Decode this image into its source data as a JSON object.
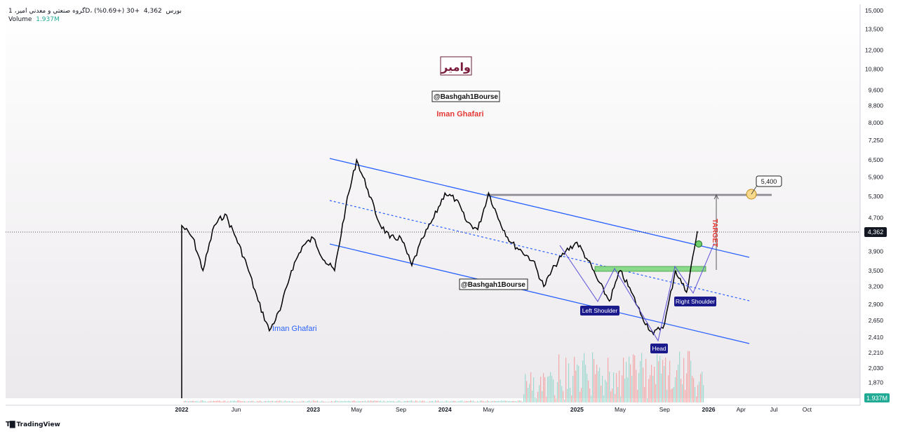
{
  "header": {
    "symbol": "گروه صنعتي و معدني امير، 1D، بورس",
    "price": "4,362",
    "change": "+30 (+0.69%)",
    "volume_label": "Volume",
    "volume_value": "1.937M"
  },
  "watermarks": {
    "logo_text": "وامير",
    "handle_top": "@Bashgah1Bourse",
    "author_top": "Iman Ghafari",
    "handle_mid": "@Bashgah1Bourse",
    "author_bottom": "Iman Ghafari"
  },
  "annotations": {
    "left_shoulder": "Left Shoulder",
    "head": "Head",
    "right_shoulder": "Right Shoulder",
    "target_label": "TARGET",
    "target_value": "5,400"
  },
  "price_badge": "4,362",
  "volume_badge": "1.937M",
  "branding": {
    "logo_icon": "tradingview-logo-icon",
    "text": "TradingView"
  },
  "colors": {
    "channel": "#2962ff",
    "price_line": "#000000",
    "annotation_bg": "#1a1a8c",
    "target": "#e53935",
    "neckline_zone": "#8bd98b",
    "volume_up": "#9fd9cf",
    "volume_down": "#f3a9a9"
  },
  "chart_data": {
    "type": "line",
    "title": "",
    "scale": "log",
    "y_ticks": [
      15000,
      13500,
      12000,
      10800,
      9600,
      8800,
      8000,
      7250,
      6500,
      5900,
      5300,
      4700,
      3900,
      3500,
      3200,
      2900,
      2650,
      2410,
      2210,
      2030,
      1870
    ],
    "y_tick_labels": [
      "15,000",
      "13,500",
      "12,000",
      "10,800",
      "9,600",
      "8,800",
      "8,000",
      "7,250",
      "6,500",
      "5,900",
      "5,300",
      "4,700",
      "3,900",
      "3,500",
      "3,200",
      "2,900",
      "2,650",
      "2,410",
      "2,210",
      "2,030",
      "1,870"
    ],
    "x_ticks": [
      "2022",
      "Jun",
      "2023",
      "May",
      "Sep",
      "2024",
      "May",
      "2025",
      "May",
      "Sep",
      "2026",
      "Apr",
      "Jul",
      "Oct"
    ],
    "x_tick_dates": [
      "2022-01-01",
      "2022-06-01",
      "2023-01-01",
      "2023-05-01",
      "2023-09-01",
      "2024-01-01",
      "2024-05-01",
      "2025-01-01",
      "2025-05-01",
      "2025-09-01",
      "2026-01-01",
      "2026-04-01",
      "2026-07-01",
      "2026-10-01"
    ],
    "series": [
      {
        "x": [
          "2022-01-01",
          "2022-02-01",
          "2022-03-01",
          "2022-04-01",
          "2022-05-01",
          "2022-06-01",
          "2022-07-01",
          "2022-08-01",
          "2022-09-01",
          "2022-10-01",
          "2022-11-01",
          "2022-12-01",
          "2023-01-01",
          "2023-02-01",
          "2023-03-01",
          "2023-04-01",
          "2023-05-01",
          "2023-06-01",
          "2023-07-01",
          "2023-08-01",
          "2023-09-01",
          "2023-10-01",
          "2023-11-01",
          "2023-12-01",
          "2024-01-01",
          "2024-02-01",
          "2024-03-01",
          "2024-04-01",
          "2024-05-01",
          "2024-06-01",
          "2024-07-01",
          "2024-08-01",
          "2024-09-01",
          "2024-10-01",
          "2024-11-01",
          "2024-12-01",
          "2025-01-01",
          "2025-02-01",
          "2025-03-01",
          "2025-04-01",
          "2025-05-01",
          "2025-06-01",
          "2025-07-01",
          "2025-08-01",
          "2025-09-01",
          "2025-10-01",
          "2025-11-01",
          "2025-12-01"
        ],
        "y": [
          4500,
          4200,
          3500,
          4500,
          4800,
          4200,
          3600,
          2950,
          2500,
          2800,
          3500,
          4000,
          4200,
          3700,
          3500,
          5000,
          6500,
          5500,
          4600,
          4200,
          4200,
          3600,
          4200,
          4700,
          5400,
          5200,
          4600,
          4400,
          5400,
          4600,
          4100,
          3900,
          3700,
          3200,
          3600,
          3900,
          4100,
          3700,
          3300,
          2950,
          3500,
          3100,
          2700,
          2450,
          2600,
          3500,
          3100,
          4362
        ]
      }
    ],
    "volume": {
      "label": "Volume",
      "last": "1.937M"
    },
    "levels": [
      {
        "name": "resistance",
        "value": 5400
      }
    ],
    "pattern": "inverse head and shoulders",
    "grid": false,
    "legend": "none"
  }
}
